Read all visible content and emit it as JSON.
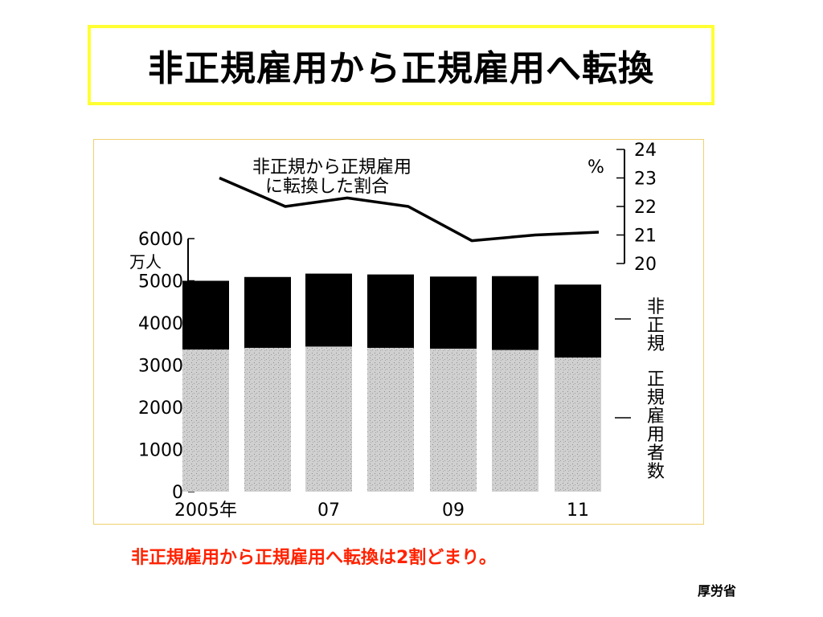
{
  "title": "非正規雇用から正規雇用へ転換",
  "caption": "非正規雇用から正規雇用へ転換は2割どまり。",
  "source": "厚労省",
  "colors": {
    "title_border": "#ffff33",
    "caption": "#ff2200",
    "nonregular_bar": "#000000",
    "regular_bar": "#c8c8c8"
  },
  "chart_data": {
    "type": "bar",
    "stacked": true,
    "categories": [
      "2005",
      "06",
      "07",
      "08",
      "09",
      "10",
      "11"
    ],
    "x_tick_labels": [
      "2005年",
      "",
      "07",
      "",
      "09",
      "",
      "11"
    ],
    "y_left": {
      "unit_label": "万人",
      "ylim": [
        0,
        6000
      ],
      "ticks": [
        "0",
        "1000",
        "2000",
        "3000",
        "4000",
        "5000",
        "6000"
      ]
    },
    "series": [
      {
        "name": "正規雇用者数",
        "values": [
          3370,
          3410,
          3440,
          3410,
          3390,
          3360,
          3180
        ]
      },
      {
        "name": "非正規",
        "values": [
          1630,
          1680,
          1730,
          1740,
          1710,
          1750,
          1730
        ]
      }
    ],
    "line": {
      "label_line1": "非正規から正規雇用",
      "label_line2": "に転換した割合",
      "unit": "%",
      "ylim": [
        20,
        24
      ],
      "ticks": [
        "20",
        "21",
        "22",
        "23",
        "24"
      ],
      "values": [
        23.0,
        22.0,
        22.3,
        22.0,
        20.8,
        21.0,
        21.1
      ]
    }
  }
}
